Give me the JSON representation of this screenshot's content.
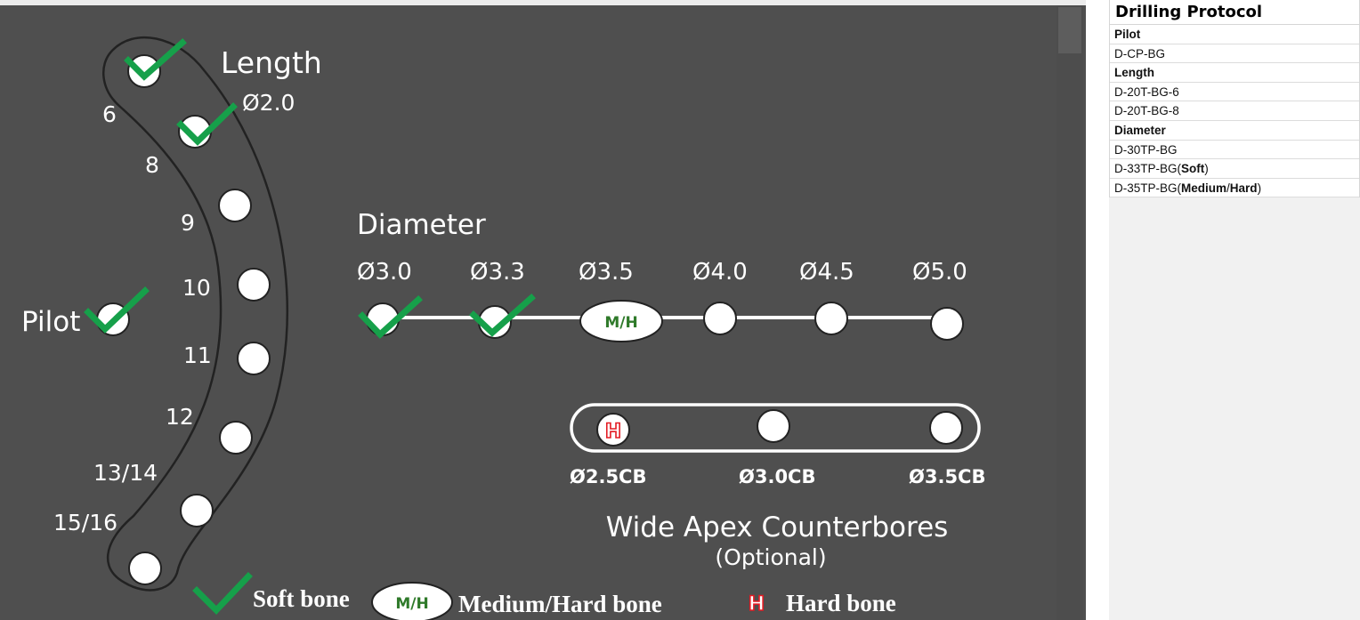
{
  "diagram": {
    "length": {
      "title": "Length",
      "start_diameter": "Ø2.0",
      "depths": [
        "6",
        "8",
        "9",
        "10",
        "11",
        "12",
        "13/14",
        "15/16"
      ]
    },
    "pilot": {
      "label": "Pilot"
    },
    "diameter": {
      "title": "Diameter",
      "sizes": [
        "Ø3.0",
        "Ø3.3",
        "Ø3.5",
        "Ø4.0",
        "Ø4.5",
        "Ø5.0"
      ],
      "oval_badge": "M/H"
    },
    "counterbores": {
      "sizes": [
        "Ø2.5CB",
        "Ø3.0CB",
        "Ø3.5CB"
      ],
      "hard_badge": "H",
      "title": "Wide Apex Counterbores",
      "subtitle": "(Optional)"
    },
    "legend": {
      "soft": "Soft bone",
      "medium_hard_badge": "M/H",
      "medium_hard": "Medium/Hard bone",
      "hard_badge": "H",
      "hard": "Hard bone"
    },
    "colors": {
      "board": "#4f4f4f",
      "check": "#16a04a",
      "badge_text": "#2f7a2a",
      "hard_badge": "#e31b23"
    }
  },
  "panel": {
    "title": "Drilling Protocol",
    "rows": [
      {
        "head": "Pilot"
      },
      {
        "text": "D-CP-BG"
      },
      {
        "head": "Length"
      },
      {
        "text": "D-20T-BG-6"
      },
      {
        "text": "D-20T-BG-8"
      },
      {
        "head": "Diameter"
      },
      {
        "text": "D-30TP-BG"
      },
      {
        "text": "D-33TP-BG(",
        "bold": "Soft",
        "after": ")"
      },
      {
        "text": "D-35TP-BG(",
        "bold": "Medium",
        "mid": "/",
        "bold2": "Hard",
        "after": ")"
      }
    ]
  }
}
